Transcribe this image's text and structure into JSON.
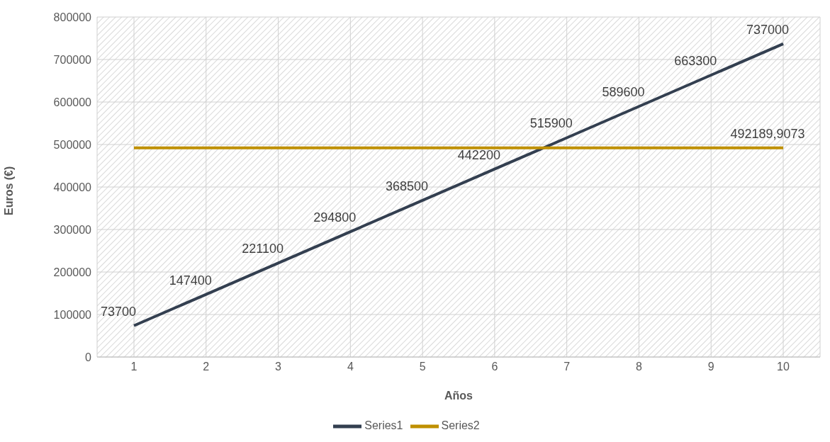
{
  "chart_data": {
    "type": "line",
    "xlabel": "Años",
    "ylabel": "Euros (€)",
    "categories": [
      "1",
      "2",
      "3",
      "4",
      "5",
      "6",
      "7",
      "8",
      "9",
      "10"
    ],
    "series": [
      {
        "name": "Series1",
        "color": "#333f50",
        "values": [
          73700,
          147400,
          221100,
          294800,
          368500,
          442200,
          515900,
          589600,
          663300,
          737000
        ],
        "value_labels": [
          "73700",
          "147400",
          "221100",
          "294800",
          "368500",
          "442200",
          "515900",
          "589600",
          "663300",
          "737000"
        ]
      },
      {
        "name": "Series2",
        "color": "#bf9000",
        "values": [
          492189.9073,
          492189.9073,
          492189.9073,
          492189.9073,
          492189.9073,
          492189.9073,
          492189.9073,
          492189.9073,
          492189.9073,
          492189.9073
        ],
        "value_labels": [
          null,
          null,
          null,
          null,
          null,
          null,
          null,
          null,
          null,
          "492189,9073"
        ]
      }
    ],
    "ylim": [
      0,
      800000
    ],
    "yticks": [
      0,
      100000,
      200000,
      300000,
      400000,
      500000,
      600000,
      700000,
      800000
    ],
    "grid": true,
    "legend": "bottom",
    "marker": "none",
    "line_style": "solid"
  }
}
